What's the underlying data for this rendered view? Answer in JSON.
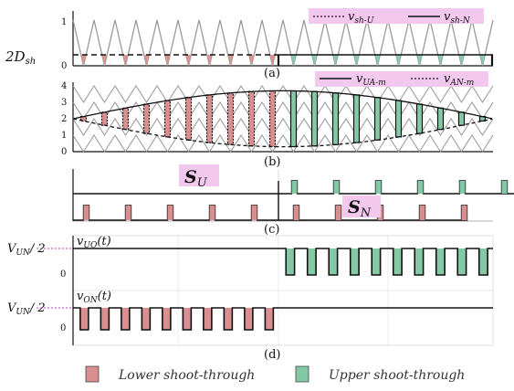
{
  "colors": {
    "lower_fill": "#d98f8f",
    "upper_fill": "#84c9a6",
    "carrier": "#9a9a9a",
    "dark": "#111111",
    "legend_bg": "#f3c8ee"
  },
  "labels": {
    "panel_a": "(a)",
    "panel_b": "(b)",
    "panel_c": "(c)",
    "panel_d": "(d)",
    "two_d_sh": "2D",
    "two_d_sh_sub": "sh",
    "sU": "S",
    "sU_sub": "U",
    "sN": "S",
    "sN_sub": "N",
    "vuo": "v",
    "vuo_sub": "UO",
    "vuo_arg": "(t)",
    "von": "v",
    "von_sub": "ON",
    "von_arg": "(t)",
    "vun_half": "V",
    "vun_half_sub": "UN",
    "vun_half_tail": "/ 2",
    "zero": "0"
  },
  "legends": {
    "a": [
      {
        "style": "dotted",
        "text": "v",
        "sub": "sh-U"
      },
      {
        "style": "solid",
        "text": "v",
        "sub": "sh-N"
      }
    ],
    "b": [
      {
        "style": "solid",
        "text": "v",
        "sub": "UA-m"
      },
      {
        "style": "dotted",
        "text": "v",
        "sub": "AN-m"
      }
    ],
    "bottom": [
      {
        "swatch": "lower",
        "text": "Lower shoot-through"
      },
      {
        "swatch": "upper",
        "text": "Upper shoot-through"
      }
    ]
  },
  "chart_data": [
    {
      "panel": "a",
      "type": "line",
      "yticks": [
        "0",
        "1"
      ],
      "ylim": [
        0,
        1
      ],
      "carrier_periods": 20,
      "series": [
        {
          "name": "v_sh-U",
          "level": 0.24,
          "interval": "first-half"
        },
        {
          "name": "v_sh-N",
          "level": 0.24,
          "interval": "second-half"
        }
      ]
    },
    {
      "panel": "b",
      "type": "line",
      "yticks": [
        "0",
        "1",
        "2",
        "3",
        "4"
      ],
      "ylim": [
        0,
        4
      ],
      "carrier_periods": 20,
      "series": [
        {
          "name": "v_UA-m",
          "shape": "sinusoid",
          "offset": 2,
          "amplitude": 1.7
        },
        {
          "name": "v_AN-m",
          "shape": "sinusoid",
          "offset": 2,
          "amplitude": -1.7
        }
      ]
    },
    {
      "panel": "c",
      "type": "line",
      "signals": [
        {
          "name": "S_U",
          "pulses_in": "first-half",
          "pulse_count": 10
        },
        {
          "name": "S_N",
          "pulses_in": "second-half",
          "pulse_count": 10
        }
      ]
    },
    {
      "panel": "d",
      "type": "line",
      "signals": [
        {
          "name": "v_UO(t)",
          "level": "V_UN/2",
          "notches_in": "second-half",
          "notch_count": 10
        },
        {
          "name": "v_ON(t)",
          "level": "V_UN/2",
          "notches_in": "first-half",
          "notch_count": 10
        }
      ]
    }
  ]
}
